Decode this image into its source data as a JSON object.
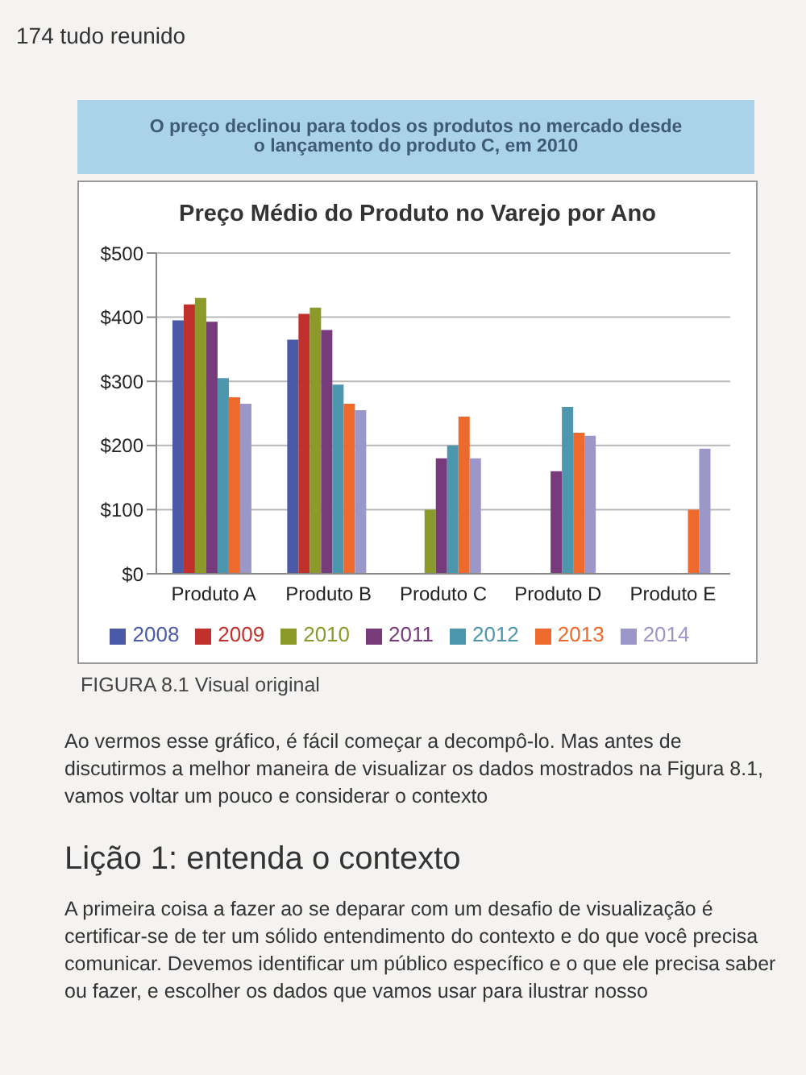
{
  "chart_data": {
    "type": "bar",
    "title": "Preço Médio do Produto no Varejo por Ano",
    "subtitle": "O preço declinou para todos os produtos no mercado desde o lançamento do produto C, em 2010",
    "categories": [
      "Produto A",
      "Produto B",
      "Produto C",
      "Produto D",
      "Produto E"
    ],
    "series": [
      {
        "name": "2008",
        "color": "#4a5aa6",
        "values": [
          395,
          365,
          null,
          null,
          null
        ]
      },
      {
        "name": "2009",
        "color": "#c0302c",
        "values": [
          420,
          405,
          null,
          null,
          null
        ]
      },
      {
        "name": "2010",
        "color": "#8c9a2c",
        "values": [
          430,
          415,
          100,
          null,
          null
        ]
      },
      {
        "name": "2011",
        "color": "#773b7c",
        "values": [
          393,
          380,
          180,
          160,
          null
        ]
      },
      {
        "name": "2012",
        "color": "#4d97ae",
        "values": [
          305,
          295,
          200,
          260,
          null
        ]
      },
      {
        "name": "2013",
        "color": "#ee6a2c",
        "values": [
          275,
          265,
          245,
          220,
          100
        ]
      },
      {
        "name": "2014",
        "color": "#9b97c8",
        "values": [
          265,
          255,
          180,
          215,
          195
        ]
      }
    ],
    "ylim": [
      0,
      500
    ],
    "yticks": [
      {
        "value": 0,
        "label": "$0"
      },
      {
        "value": 100,
        "label": "$100"
      },
      {
        "value": 200,
        "label": "$200"
      },
      {
        "value": 300,
        "label": "$300"
      },
      {
        "value": 400,
        "label": "$400"
      },
      {
        "value": 500,
        "label": "$500"
      }
    ],
    "grid": "y",
    "legend": "bottom",
    "annotations": [
      "174 tudo reunido",
      "FIGURA 8.1 Visual original",
      "Ao vermos esse gráfico, é fácil começar a decompô-lo. Mas antes de discutirmos a melhor maneira de visualizar os dados mostrados na Figura 8.1, vamos voltar um pouco e considerar o contexto",
      "Lição 1: entenda o contexto",
      "A primeira coisa a fazer ao se deparar com um desafio de visualização é certificar-se de ter um sólido entendimento do contexto e do que você precisa comunicar. Devemos identificar um público específico e o que ele precisa saber ou fazer, e escolher os dados que vamos usar para ilustrar nosso"
    ]
  }
}
